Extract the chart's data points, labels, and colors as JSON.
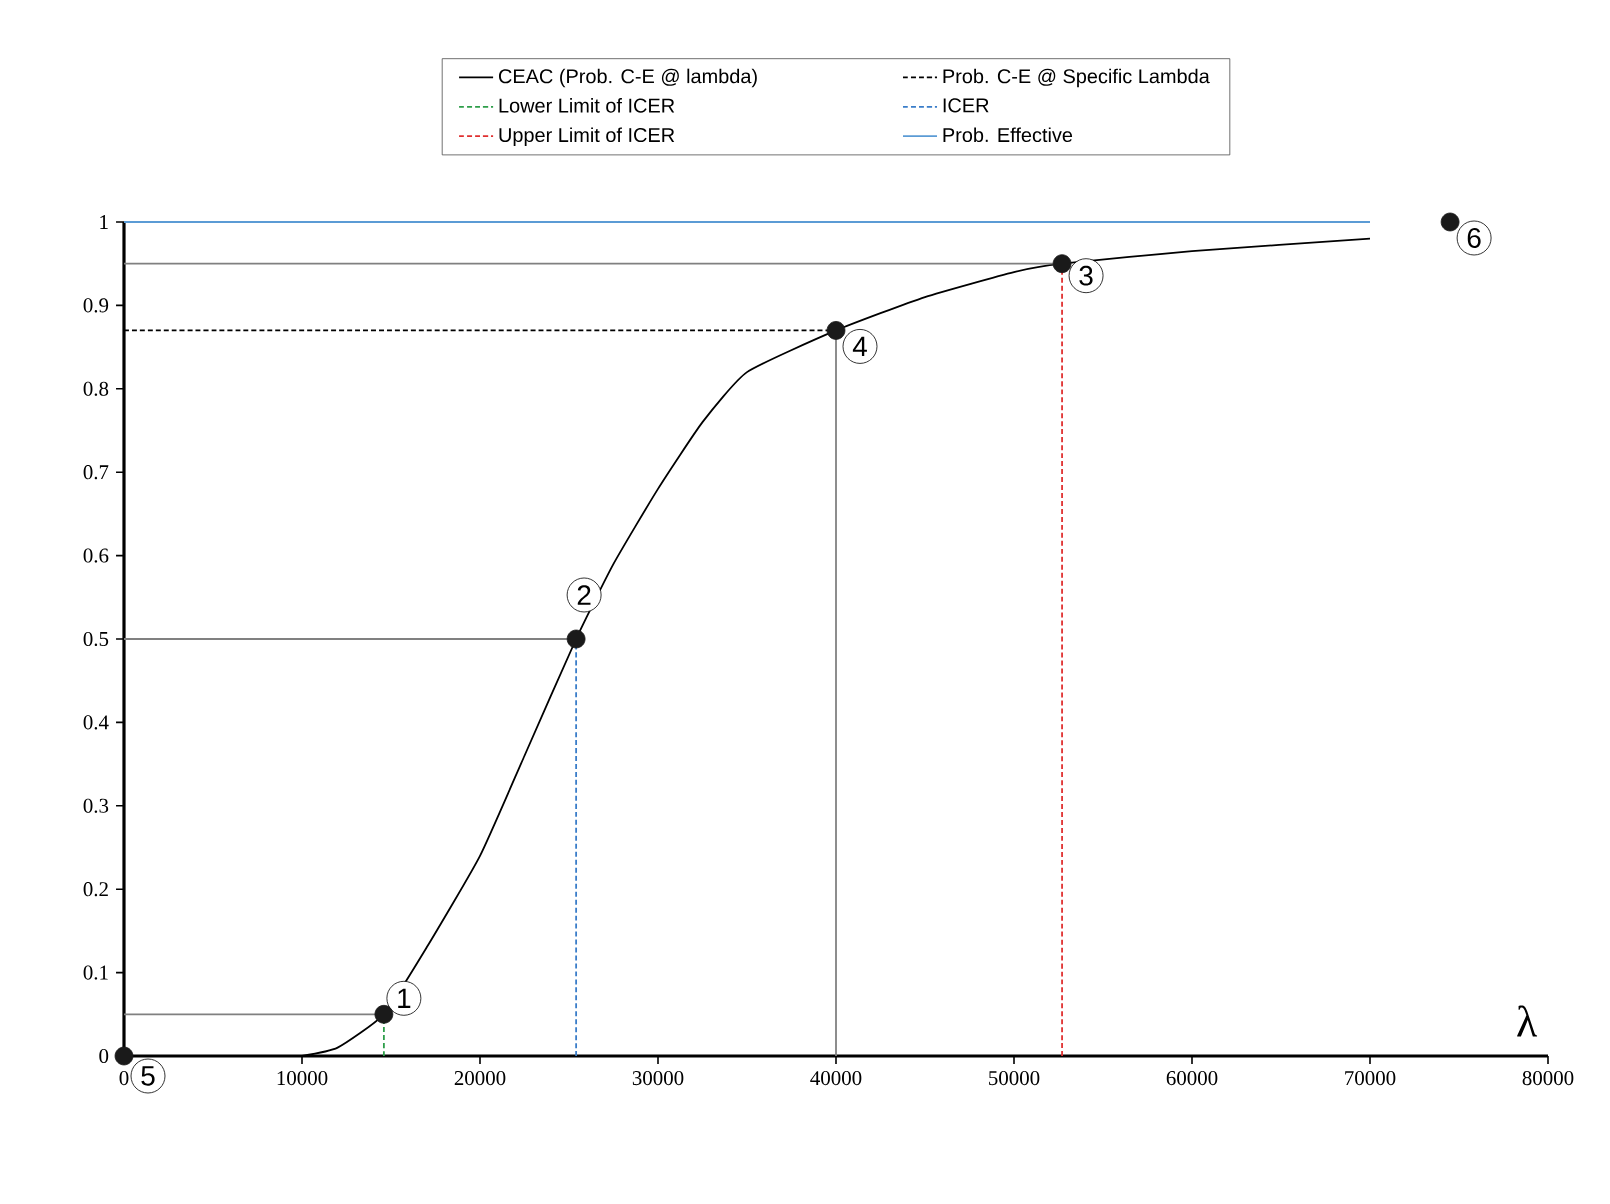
{
  "chart_data": {
    "type": "line",
    "xlabel": "λ",
    "xlim": [
      0,
      80000
    ],
    "ylim": [
      0,
      1
    ],
    "xticks": [
      0,
      10000,
      20000,
      30000,
      40000,
      50000,
      60000,
      70000,
      80000
    ],
    "yticks": [
      0,
      0.1,
      0.2,
      0.3,
      0.4,
      0.5,
      0.6,
      0.7,
      0.8,
      0.9,
      1
    ],
    "grid": false,
    "legend": "top",
    "series": [
      {
        "name": "CEAC (Prob. C-E @ lambda)",
        "color": "#000000",
        "line_style": "solid",
        "x": [
          10000,
          12000,
          14600,
          17000,
          20000,
          22500,
          25400,
          27500,
          30000,
          32500,
          35000,
          40000,
          45000,
          50000,
          52700,
          60000,
          70000
        ],
        "values": [
          0,
          0.01,
          0.05,
          0.13,
          0.24,
          0.36,
          0.5,
          0.59,
          0.68,
          0.76,
          0.82,
          0.87,
          0.91,
          0.94,
          0.95,
          0.965,
          0.98
        ]
      },
      {
        "name": "Prob. C-E @ Specific Lambda",
        "color": "#000000",
        "line_style": "dashed",
        "x": [
          0,
          40000
        ],
        "values": [
          0.87,
          0.87
        ]
      },
      {
        "name": "Lower Limit of ICER",
        "color": "#2e9e4a",
        "line_style": "dashed",
        "x": [
          14600,
          14600
        ],
        "values": [
          0,
          0.05
        ]
      },
      {
        "name": "ICER",
        "color": "#3a7dc9",
        "line_style": "dashed",
        "x": [
          25400,
          25400
        ],
        "values": [
          0,
          0.5
        ]
      },
      {
        "name": "Upper Limit of ICER",
        "color": "#e03030",
        "line_style": "dashed",
        "x": [
          52700,
          52700
        ],
        "values": [
          0,
          0.95
        ]
      },
      {
        "name": "Prob. Effective",
        "color": "#5b9bd5",
        "line_style": "solid",
        "x": [
          0,
          70000
        ],
        "values": [
          1,
          1
        ]
      },
      {
        "color": "#808080",
        "line_style": "solid",
        "x": [
          0,
          14600
        ],
        "values": [
          0.05,
          0.05
        ]
      },
      {
        "color": "#808080",
        "line_style": "solid",
        "x": [
          0,
          25400
        ],
        "values": [
          0.5,
          0.5
        ]
      },
      {
        "color": "#808080",
        "line_style": "solid",
        "x": [
          0,
          52700
        ],
        "values": [
          0.95,
          0.95
        ]
      },
      {
        "color": "#808080",
        "line_style": "solid",
        "x": [
          40000,
          40000
        ],
        "values": [
          0,
          0.87
        ]
      },
      {
        "type": "scatter",
        "marker": "circle",
        "color": "#1a1a1a",
        "x": [
          14600,
          25400,
          52700,
          40000,
          0,
          74500
        ],
        "values": [
          0.05,
          0.5,
          0.95,
          0.87,
          0,
          1
        ]
      }
    ],
    "annotations": [
      {
        "text": "1",
        "x": 14600,
        "y": 0.05
      },
      {
        "text": "2",
        "x": 25400,
        "y": 0.5
      },
      {
        "text": "3",
        "x": 52700,
        "y": 0.95
      },
      {
        "text": "4",
        "x": 40000,
        "y": 0.87
      },
      {
        "text": "5",
        "x": 0,
        "y": 0
      },
      {
        "text": "6",
        "x": 74500,
        "y": 1
      }
    ]
  }
}
